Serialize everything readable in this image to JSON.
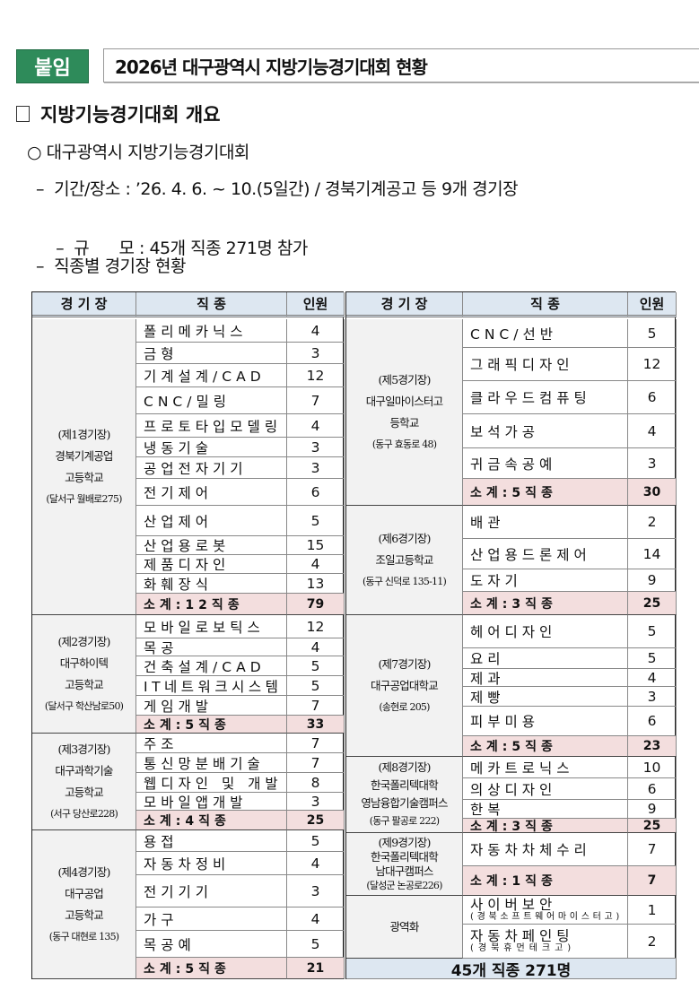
{
  "header": {
    "badge": "붙임",
    "title": "2026년 대구광역시 지방기능경기대회 현황"
  },
  "section": {
    "title": "지방기능경기대회 개요"
  },
  "bullets": {
    "main": "대구광역시 지방기능경기대회",
    "period": "기간/장소 : ’26. 4. 6. ~ 10.(5일간) / 경북기계공고 등 9개 경기장",
    "scale": "규      모 : 45개 직종 271명 참가",
    "status": "직종별 경기장 현황"
  },
  "table_headers": {
    "venue": "경 기 장",
    "job": "직   종",
    "count": "인원"
  },
  "left_venues": [
    {
      "lines": [
        "(제1경기장)",
        "경북기계공업",
        "고등학교"
      ],
      "addr": "(달서구 월배로275)",
      "jobs": [
        [
          "폴리메카닉스",
          "4"
        ],
        [
          "금형",
          "3"
        ],
        [
          "기계설계/CAD",
          "12"
        ],
        [
          "CNC/밀링",
          "7"
        ],
        [
          "프로토타입모델링",
          "4"
        ],
        [
          "냉동기술",
          "3"
        ],
        [
          "공업전자기기",
          "3"
        ],
        [
          "전기제어",
          "6"
        ],
        [
          "산업제어",
          "5"
        ],
        [
          "산업용로봇",
          "15"
        ],
        [
          "제품디자인",
          "4"
        ],
        [
          "화훼장식",
          "13"
        ]
      ],
      "subtotal": [
        "소계:12직종",
        "79"
      ]
    },
    {
      "lines": [
        "(제2경기장)",
        "대구하이텍",
        "고등학교"
      ],
      "addr": "(달서구 학산남로50)",
      "jobs": [
        [
          "모바일로보틱스",
          "12"
        ],
        [
          "목공",
          "4"
        ],
        [
          "건축설계/CAD",
          "5"
        ],
        [
          "IT네트워크시스템",
          "5"
        ],
        [
          "게임개발",
          "7"
        ]
      ],
      "subtotal": [
        "소계:5직종",
        "33"
      ]
    },
    {
      "lines": [
        "(제3경기장)",
        "대구과학기술",
        "고등학교"
      ],
      "addr": "(서구 당산로228)",
      "jobs": [
        [
          "주조",
          "7"
        ],
        [
          "통신망분배기술",
          "7"
        ],
        [
          "웹디자인 및 개발",
          "8"
        ],
        [
          "모바일앱개발",
          "3"
        ]
      ],
      "subtotal": [
        "소계:4직종",
        "25"
      ]
    },
    {
      "lines": [
        "(제4경기장)",
        "대구공업",
        "고등학교"
      ],
      "addr": "(동구 대현로 135)",
      "jobs": [
        [
          "용접",
          "5"
        ],
        [
          "자동차정비",
          "4"
        ],
        [
          "전기기기",
          "3"
        ],
        [
          "가구",
          "4"
        ],
        [
          "목공예",
          "5"
        ]
      ],
      "subtotal": [
        "소계:5직종",
        "21"
      ]
    }
  ],
  "right_venues": [
    {
      "lines": [
        "(제5경기장)",
        "대구일마이스터고",
        "등학교"
      ],
      "addr": "(동구 효동로 48)",
      "jobs": [
        [
          "CNC/선반",
          "5"
        ],
        [
          "그래픽디자인",
          "12"
        ],
        [
          "클라우드컴퓨팅",
          "6"
        ],
        [
          "보석가공",
          "4"
        ],
        [
          "귀금속공예",
          "3"
        ]
      ],
      "subtotal": [
        "소계:5직종",
        "30"
      ]
    },
    {
      "lines": [
        "(제6경기장)",
        "조일고등학교"
      ],
      "addr": "(동구 신덕로 135-11)",
      "jobs": [
        [
          "배관",
          "2"
        ],
        [
          "산업용드론제어",
          "14"
        ],
        [
          "도자기",
          "9"
        ]
      ],
      "subtotal": [
        "소계:3직종",
        "25"
      ]
    },
    {
      "lines": [
        "(제7경기장)",
        "대구공업대학교"
      ],
      "addr": "(송현로 205)",
      "jobs": [
        [
          "헤어디자인",
          "5"
        ],
        [
          "요리",
          "5"
        ],
        [
          "제과",
          "4"
        ],
        [
          "제빵",
          "3"
        ],
        [
          "피부미용",
          "6"
        ]
      ],
      "subtotal": [
        "소계:5직종",
        "23"
      ]
    },
    {
      "lines": [
        "(제8경기장)",
        "한국폴리텍대학",
        "영남융합기술캠퍼스"
      ],
      "addr": "(동구 팔공로 222)",
      "jobs": [
        [
          "메카트로닉스",
          "10"
        ],
        [
          "의상디자인",
          "6"
        ],
        [
          "한복",
          "9"
        ]
      ],
      "subtotal": [
        "소계:3직종",
        "25"
      ]
    },
    {
      "lines": [
        "(제9경기장)",
        "한국폴리텍대학",
        "남대구캠퍼스"
      ],
      "addr": "(달성군 논공로226)",
      "jobs": [
        [
          "자동차차체수리",
          "7"
        ]
      ],
      "subtotal": [
        "소계:1직종",
        "7"
      ]
    },
    {
      "lines": [
        "광역화"
      ],
      "addr": "",
      "jobs": [
        [
          "사이버보안",
          "1",
          "(경북소프트웨어마이스터고)"
        ],
        [
          "자동차페인팅",
          "2",
          "(경북휴먼테크고)"
        ]
      ],
      "subtotal": null
    }
  ],
  "total": "45개 직종 271명",
  "colors": {
    "badge": "#2e8b5a",
    "header_bg": "#dde7f1",
    "subtotal_bg": "#f3dede",
    "venue_bg": "#f2f2f2"
  }
}
